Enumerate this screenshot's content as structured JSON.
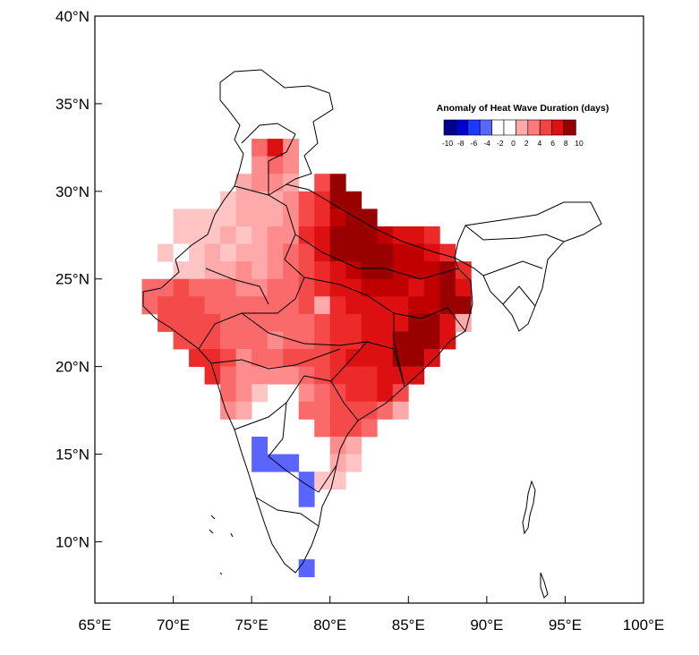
{
  "map": {
    "projection": "lat-lon",
    "lon_range": [
      65,
      100
    ],
    "lat_range": [
      6.5,
      40
    ],
    "grid_cell_deg": 1,
    "lat_ticks": [
      "10°N",
      "15°N",
      "20°N",
      "25°N",
      "30°N",
      "35°N",
      "40°N"
    ],
    "lon_ticks": [
      "65°E",
      "70°E",
      "75°E",
      "80°E",
      "85°E",
      "90°E",
      "95°E",
      "100°E"
    ],
    "lat_tick_values": [
      10,
      15,
      20,
      25,
      30,
      35,
      40
    ],
    "lon_tick_values": [
      65,
      70,
      75,
      80,
      85,
      90,
      95,
      100
    ]
  },
  "legend": {
    "title": "Anomaly of Heat Wave Duration (days)",
    "labels": [
      "-10",
      "-8",
      "-6",
      "-4",
      "-2",
      "0",
      "2",
      "4",
      "6",
      "8",
      "10"
    ],
    "colors": [
      "#00008b",
      "#0000cd",
      "#1a3aff",
      "#5a64ff",
      "#ffffff",
      "#ffffff",
      "#ffaaaa",
      "#ff7a7a",
      "#f54242",
      "#e01010",
      "#990000"
    ]
  },
  "anomaly_grid": {
    "description_levels": "cell values in days",
    "rows": [
      {
        "lat": 32,
        "cells": [
          [
            75,
            5
          ],
          [
            76,
            8
          ],
          [
            77,
            4
          ]
        ]
      },
      {
        "lat": 31,
        "cells": [
          [
            75,
            4
          ],
          [
            76,
            5
          ],
          [
            77,
            4
          ]
        ]
      },
      {
        "lat": 30,
        "cells": [
          [
            74,
            3
          ],
          [
            75,
            4
          ],
          [
            76,
            4
          ],
          [
            77,
            3
          ],
          [
            79,
            6
          ],
          [
            80,
            10
          ]
        ]
      },
      {
        "lat": 29,
        "cells": [
          [
            73,
            2
          ],
          [
            74,
            3
          ],
          [
            75,
            3
          ],
          [
            76,
            3
          ],
          [
            77,
            4
          ],
          [
            78,
            6
          ],
          [
            79,
            7
          ],
          [
            80,
            10
          ],
          [
            81,
            10
          ]
        ]
      },
      {
        "lat": 28,
        "cells": [
          [
            70,
            2
          ],
          [
            71,
            2
          ],
          [
            72,
            2
          ],
          [
            73,
            2
          ],
          [
            74,
            3
          ],
          [
            75,
            3
          ],
          [
            76,
            3
          ],
          [
            77,
            4
          ],
          [
            78,
            6
          ],
          [
            79,
            7
          ],
          [
            80,
            9
          ],
          [
            81,
            10
          ],
          [
            82,
            10
          ]
        ]
      },
      {
        "lat": 27,
        "cells": [
          [
            70,
            2
          ],
          [
            71,
            2
          ],
          [
            72,
            2
          ],
          [
            73,
            3
          ],
          [
            74,
            2
          ],
          [
            75,
            3
          ],
          [
            76,
            4
          ],
          [
            77,
            4
          ],
          [
            78,
            7
          ],
          [
            79,
            8
          ],
          [
            80,
            10
          ],
          [
            81,
            10
          ],
          [
            82,
            10
          ],
          [
            83,
            9
          ],
          [
            84,
            8
          ],
          [
            85,
            8
          ],
          [
            86,
            7
          ]
        ]
      },
      {
        "lat": 26,
        "cells": [
          [
            69,
            2
          ],
          [
            70,
            0
          ],
          [
            71,
            2
          ],
          [
            72,
            3
          ],
          [
            73,
            2
          ],
          [
            74,
            3
          ],
          [
            75,
            3
          ],
          [
            76,
            4
          ],
          [
            77,
            5
          ],
          [
            78,
            6
          ],
          [
            79,
            8
          ],
          [
            80,
            10
          ],
          [
            81,
            10
          ],
          [
            82,
            10
          ],
          [
            83,
            10
          ],
          [
            84,
            9
          ],
          [
            85,
            9
          ],
          [
            86,
            8
          ],
          [
            87,
            7
          ]
        ]
      },
      {
        "lat": 25,
        "cells": [
          [
            70,
            2
          ],
          [
            71,
            2
          ],
          [
            72,
            3
          ],
          [
            73,
            3
          ],
          [
            74,
            4
          ],
          [
            75,
            3
          ],
          [
            76,
            4
          ],
          [
            77,
            5
          ],
          [
            78,
            6
          ],
          [
            79,
            7
          ],
          [
            80,
            8
          ],
          [
            81,
            9
          ],
          [
            82,
            10
          ],
          [
            83,
            10
          ],
          [
            84,
            9
          ],
          [
            85,
            9
          ],
          [
            86,
            9
          ],
          [
            87,
            10
          ],
          [
            88,
            7
          ]
        ]
      },
      {
        "lat": 24,
        "cells": [
          [
            68,
            5
          ],
          [
            69,
            5
          ],
          [
            70,
            6
          ],
          [
            71,
            5
          ],
          [
            72,
            5
          ],
          [
            73,
            5
          ],
          [
            74,
            4
          ],
          [
            75,
            4
          ],
          [
            76,
            5
          ],
          [
            77,
            5
          ],
          [
            78,
            6
          ],
          [
            79,
            7
          ],
          [
            80,
            8
          ],
          [
            81,
            8
          ],
          [
            82,
            9
          ],
          [
            83,
            9
          ],
          [
            84,
            9
          ],
          [
            85,
            8
          ],
          [
            86,
            9
          ],
          [
            87,
            10
          ],
          [
            88,
            8
          ]
        ]
      },
      {
        "lat": 23,
        "cells": [
          [
            68,
            5
          ],
          [
            69,
            6
          ],
          [
            70,
            6
          ],
          [
            71,
            6
          ],
          [
            72,
            5
          ],
          [
            73,
            5
          ],
          [
            74,
            5
          ],
          [
            75,
            5
          ],
          [
            76,
            5
          ],
          [
            77,
            5
          ],
          [
            78,
            6
          ],
          [
            79,
            3
          ],
          [
            80,
            7
          ],
          [
            81,
            8
          ],
          [
            82,
            8
          ],
          [
            83,
            8
          ],
          [
            84,
            8
          ],
          [
            85,
            9
          ],
          [
            86,
            9
          ],
          [
            87,
            10
          ],
          [
            88,
            10
          ]
        ]
      },
      {
        "lat": 22,
        "cells": [
          [
            69,
            6
          ],
          [
            70,
            6
          ],
          [
            71,
            6
          ],
          [
            72,
            6
          ],
          [
            73,
            5
          ],
          [
            74,
            5
          ],
          [
            75,
            5
          ],
          [
            76,
            5
          ],
          [
            77,
            5
          ],
          [
            78,
            5
          ],
          [
            79,
            6
          ],
          [
            80,
            7
          ],
          [
            81,
            7
          ],
          [
            82,
            8
          ],
          [
            83,
            8
          ],
          [
            84,
            8
          ],
          [
            85,
            10
          ],
          [
            86,
            10
          ],
          [
            87,
            8
          ],
          [
            88,
            3
          ]
        ]
      },
      {
        "lat": 21,
        "cells": [
          [
            70,
            6
          ],
          [
            71,
            6
          ],
          [
            72,
            6
          ],
          [
            73,
            5
          ],
          [
            74,
            5
          ],
          [
            75,
            5
          ],
          [
            76,
            4
          ],
          [
            77,
            5
          ],
          [
            78,
            5
          ],
          [
            79,
            6
          ],
          [
            80,
            7
          ],
          [
            81,
            7
          ],
          [
            82,
            8
          ],
          [
            83,
            8
          ],
          [
            84,
            10
          ],
          [
            85,
            10
          ],
          [
            86,
            10
          ],
          [
            87,
            8
          ]
        ]
      },
      {
        "lat": 20,
        "cells": [
          [
            71,
            7
          ],
          [
            72,
            7
          ],
          [
            73,
            6
          ],
          [
            74,
            4
          ],
          [
            75,
            5
          ],
          [
            76,
            5
          ],
          [
            77,
            6
          ],
          [
            78,
            6
          ],
          [
            79,
            6
          ],
          [
            80,
            7
          ],
          [
            81,
            8
          ],
          [
            82,
            8
          ],
          [
            83,
            8
          ],
          [
            84,
            10
          ],
          [
            85,
            10
          ],
          [
            86,
            8
          ]
        ]
      },
      {
        "lat": 19,
        "cells": [
          [
            72,
            7
          ],
          [
            73,
            5
          ],
          [
            74,
            4
          ],
          [
            75,
            4
          ],
          [
            76,
            4
          ],
          [
            77,
            4
          ],
          [
            78,
            5
          ],
          [
            79,
            6
          ],
          [
            80,
            7
          ],
          [
            81,
            7
          ],
          [
            82,
            7
          ],
          [
            83,
            8
          ],
          [
            84,
            8
          ],
          [
            85,
            8
          ]
        ]
      },
      {
        "lat": 18,
        "cells": [
          [
            73,
            5
          ],
          [
            74,
            4
          ],
          [
            75,
            2
          ],
          [
            78,
            4
          ],
          [
            79,
            5
          ],
          [
            80,
            6
          ],
          [
            81,
            7
          ],
          [
            82,
            7
          ],
          [
            83,
            8
          ],
          [
            84,
            6
          ]
        ]
      },
      {
        "lat": 17,
        "cells": [
          [
            73,
            4
          ],
          [
            74,
            3
          ],
          [
            78,
            5
          ],
          [
            79,
            5
          ],
          [
            80,
            6
          ],
          [
            81,
            6
          ],
          [
            82,
            6
          ],
          [
            83,
            5
          ],
          [
            84,
            3
          ]
        ]
      },
      {
        "lat": 16,
        "cells": [
          [
            79,
            5
          ],
          [
            80,
            6
          ],
          [
            81,
            6
          ],
          [
            82,
            5
          ]
        ]
      },
      {
        "lat": 15,
        "cells": [
          [
            75,
            -4
          ],
          [
            80,
            4
          ],
          [
            81,
            3
          ]
        ]
      },
      {
        "lat": 14,
        "cells": [
          [
            75,
            -4
          ],
          [
            76,
            -4
          ],
          [
            77,
            -4
          ],
          [
            80,
            3
          ],
          [
            81,
            2
          ]
        ]
      },
      {
        "lat": 13,
        "cells": [
          [
            78,
            -4
          ],
          [
            79,
            2
          ],
          [
            80,
            2
          ]
        ]
      },
      {
        "lat": 12,
        "cells": [
          [
            78,
            -4
          ]
        ]
      },
      {
        "lat": 8,
        "cells": [
          [
            78,
            -4
          ]
        ]
      }
    ]
  }
}
